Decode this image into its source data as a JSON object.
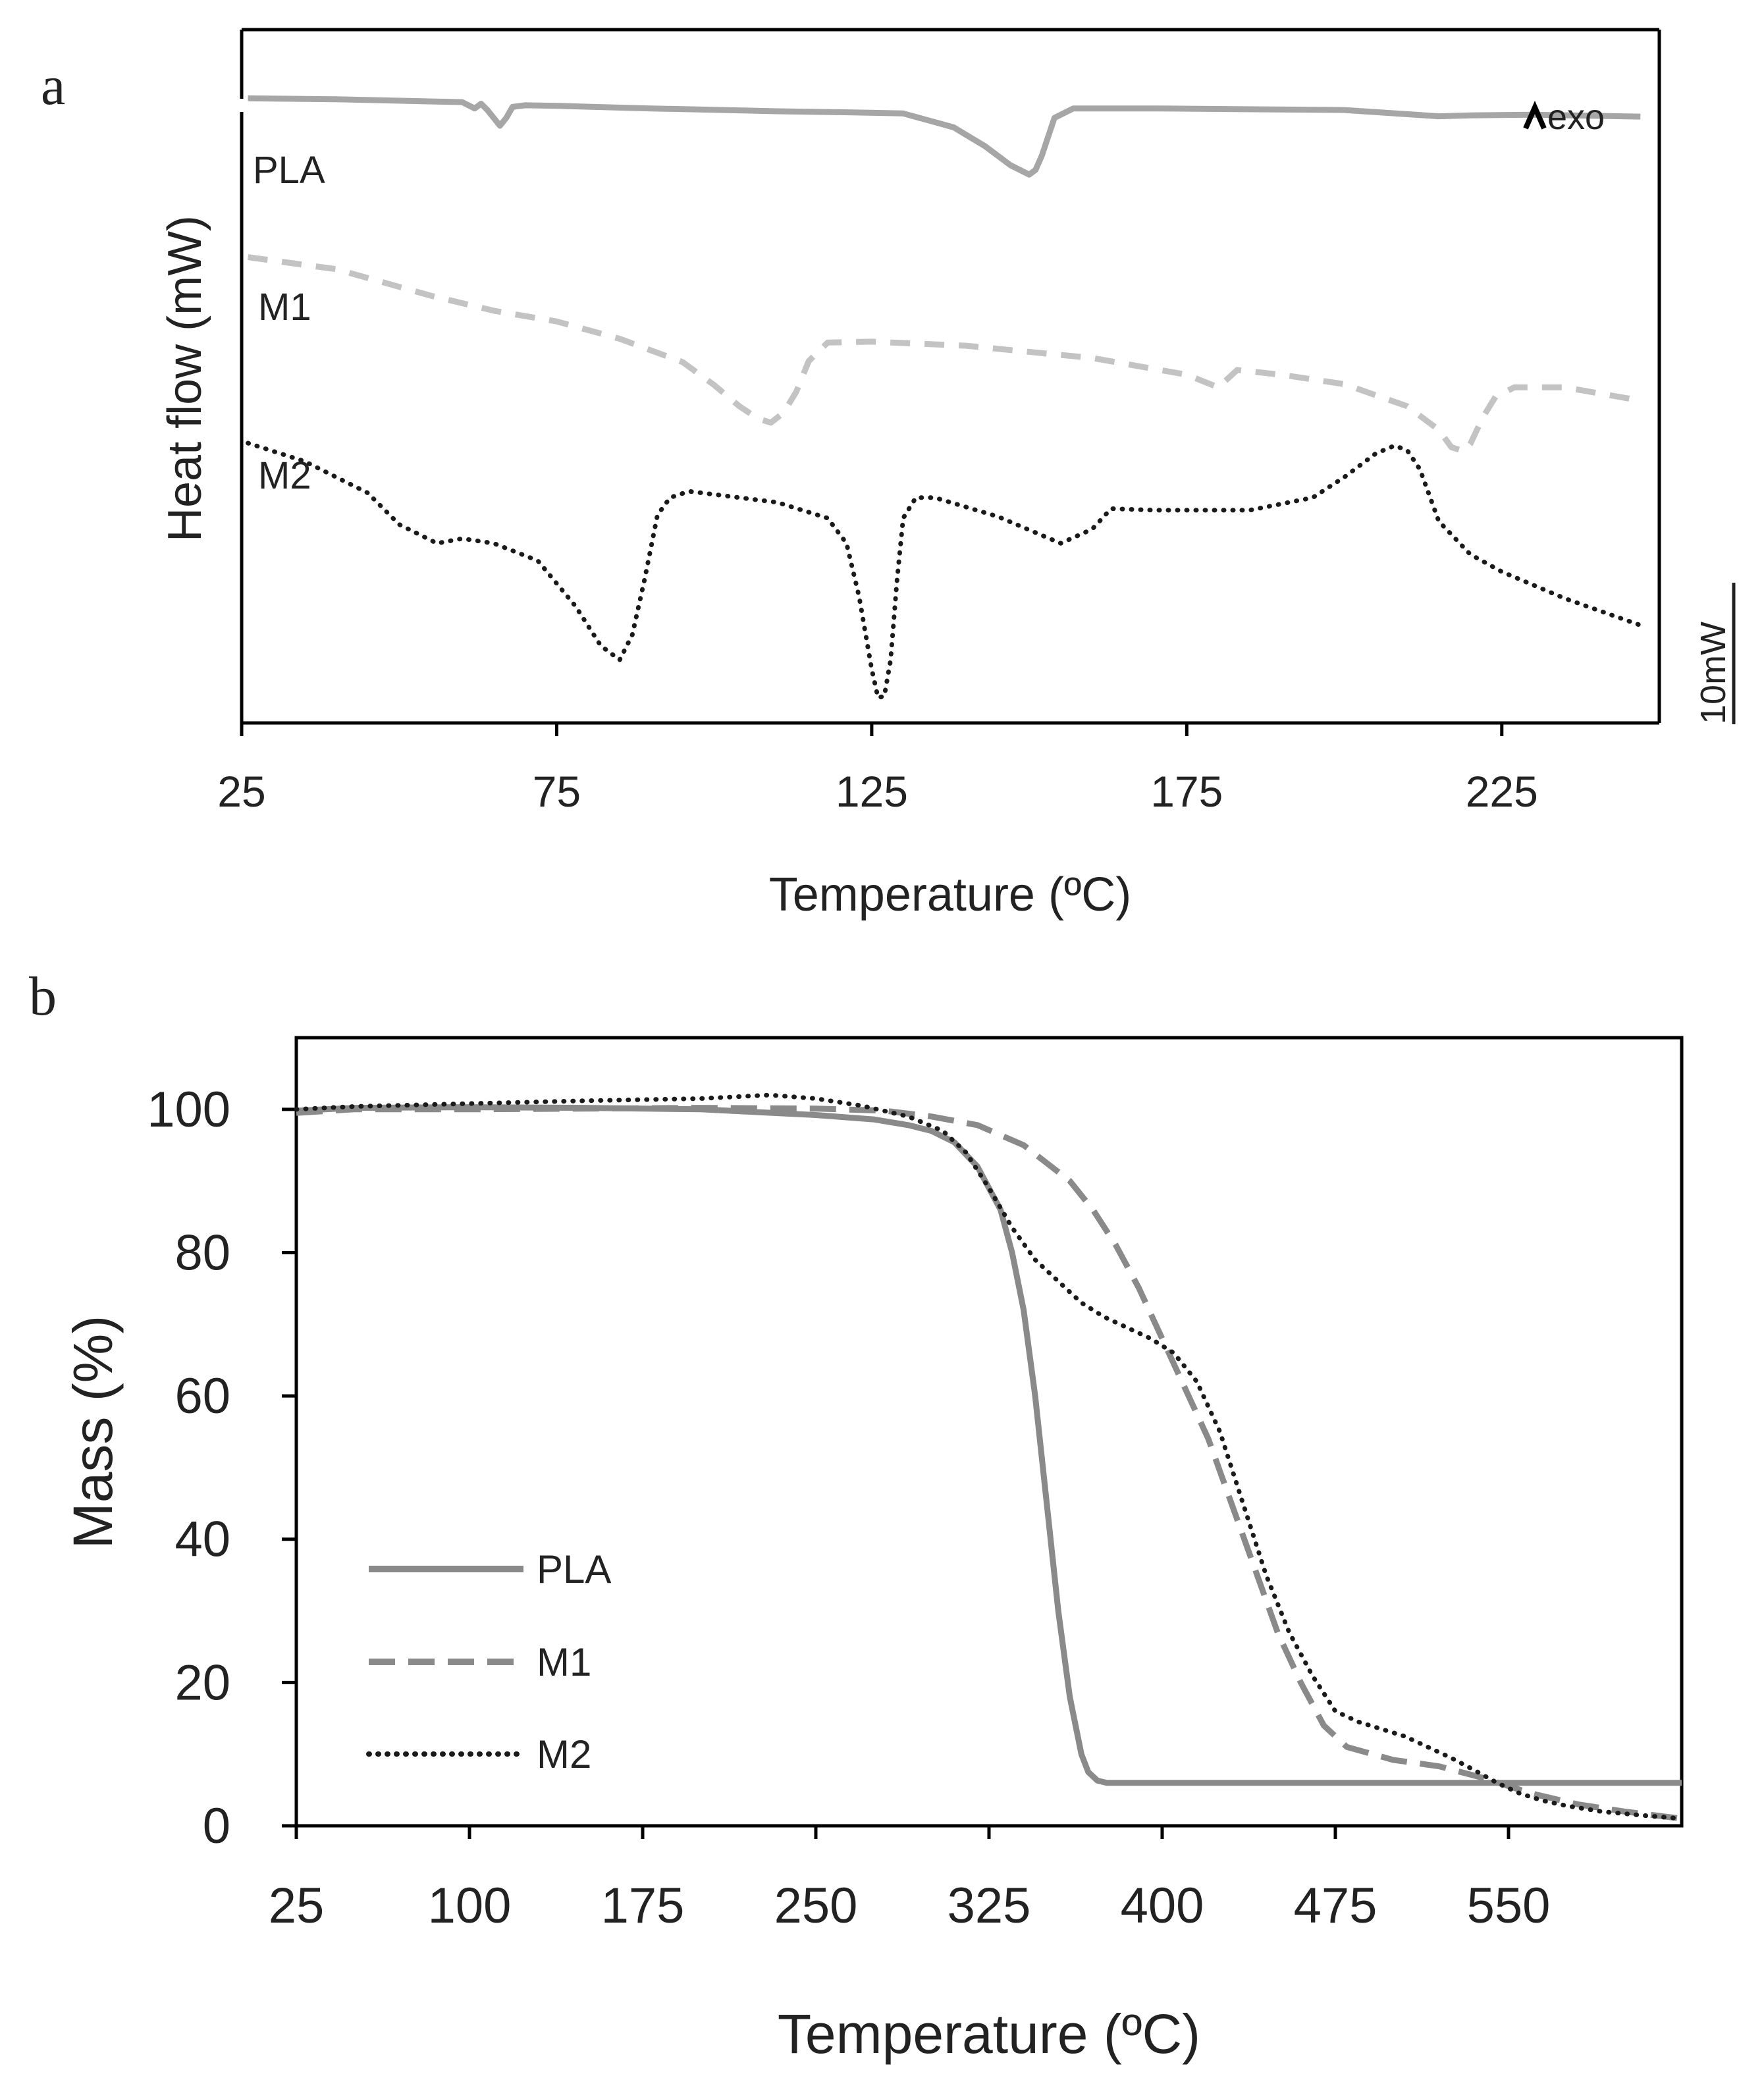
{
  "chart_data": [
    {
      "panel": "a",
      "type": "line",
      "xlabel": "Temperature (ºC)",
      "ylabel": "Heat flow  (mW)",
      "xlim": [
        25,
        250
      ],
      "xticks": [
        "25",
        "75",
        "125",
        "175",
        "225"
      ],
      "annotations": {
        "exo": "exo",
        "scale_bar": "10mW"
      },
      "series": [
        {
          "name": "PLA",
          "style": "solid",
          "color": "#a6a6a6",
          "x": [
            26,
            40,
            60,
            62,
            63,
            64,
            66,
            67,
            68,
            70,
            75,
            90,
            110,
            120,
            130,
            138,
            143,
            147,
            150,
            151,
            152,
            154,
            157,
            170,
            200,
            215,
            220,
            230,
            247
          ],
          "y": [
            98.2,
            97.9,
            97.0,
            95.0,
            96.5,
            94.5,
            89.5,
            92.0,
            95.5,
            96.0,
            95.8,
            95.0,
            94.1,
            93.8,
            93.4,
            89.0,
            83.0,
            77.0,
            74.0,
            75.5,
            80.0,
            92.0,
            95.0,
            95.0,
            94.5,
            92.5,
            92.8,
            93.0,
            92.4
          ]
        },
        {
          "name": "M1",
          "style": "dashed",
          "color": "#c3c3c3",
          "x": [
            26,
            40,
            55,
            65,
            75,
            85,
            95,
            100,
            104,
            107,
            109,
            111,
            113,
            115,
            118,
            125,
            140,
            160,
            175,
            180,
            183,
            190,
            200,
            210,
            215,
            217,
            219,
            220,
            222,
            224,
            227,
            235,
            247
          ],
          "y": [
            47.8,
            44.0,
            35.6,
            30.8,
            27.4,
            21.9,
            14.5,
            7.2,
            0.5,
            -3.5,
            -4.7,
            -1.6,
            5.0,
            14.8,
            20.7,
            21.0,
            19.7,
            15.8,
            10.5,
            6.5,
            12.0,
            10.5,
            7.5,
            0.5,
            -7.0,
            -12.5,
            -13.8,
            -11.5,
            -3.0,
            3.5,
            6.5,
            6.5,
            2.3
          ]
        },
        {
          "name": "M2",
          "style": "dotted",
          "color": "#1a1a1a",
          "x": [
            26,
            35,
            45,
            50,
            56,
            60,
            65,
            72,
            78,
            82,
            85,
            87,
            89,
            91,
            93,
            96,
            100,
            110,
            118,
            121,
            123,
            125,
            126,
            127,
            128,
            129,
            130,
            132,
            135,
            145,
            155,
            160,
            163,
            170,
            185,
            195,
            200,
            205,
            208,
            210,
            212,
            215,
            220,
            225,
            235,
            247
          ],
          "y": [
            -11.2,
            -17.0,
            -27.0,
            -37.0,
            -43.0,
            -41.5,
            -43.0,
            -48.5,
            -63.0,
            -75.5,
            -80.0,
            -72.0,
            -54.0,
            -34.0,
            -28.5,
            -26.5,
            -27.5,
            -30.0,
            -35.0,
            -43.0,
            -60.0,
            -83.0,
            -92.0,
            -91.5,
            -80.0,
            -55.0,
            -35.0,
            -28.5,
            -28.5,
            -34.5,
            -43.0,
            -38.5,
            -32.0,
            -32.5,
            -32.5,
            -28.5,
            -22.0,
            -14.5,
            -12.0,
            -13.5,
            -19.5,
            -36.0,
            -46.5,
            -52.0,
            -60.5,
            -69.0
          ]
        }
      ]
    },
    {
      "panel": "b",
      "type": "line",
      "xlabel": "Temperature (ºC)",
      "ylabel": "Mass (%)",
      "xlim": [
        25,
        625
      ],
      "ylim": [
        0,
        110
      ],
      "xticks": [
        25,
        100,
        175,
        250,
        325,
        400,
        475,
        550
      ],
      "yticks": [
        0,
        20,
        40,
        60,
        80,
        100
      ],
      "legend": "left-bottom",
      "series": [
        {
          "name": "PLA",
          "style": "solid",
          "color": "#8a8a8a",
          "x": [
            25,
            50,
            100,
            150,
            200,
            250,
            275,
            290,
            300,
            310,
            320,
            330,
            335,
            340,
            345,
            350,
            355,
            360,
            365,
            368,
            372,
            376,
            380,
            400,
            500,
            600,
            625
          ],
          "y": [
            99.8,
            100.2,
            100.3,
            100.2,
            100.0,
            99.2,
            98.6,
            97.8,
            97.0,
            95.4,
            92.0,
            86.0,
            80.0,
            72.0,
            60.0,
            45.0,
            30.0,
            18.0,
            10.0,
            7.5,
            6.3,
            6.0,
            6.0,
            6.0,
            6.0,
            6.0,
            6.0
          ]
        },
        {
          "name": "M1",
          "style": "dashed",
          "color": "#8a8a8a",
          "x": [
            25,
            50,
            100,
            150,
            200,
            250,
            280,
            300,
            320,
            340,
            360,
            370,
            380,
            390,
            400,
            410,
            420,
            430,
            440,
            450,
            460,
            470,
            480,
            500,
            520,
            540,
            560,
            580,
            600,
            625
          ],
          "y": [
            99.5,
            100.0,
            100.0,
            100.1,
            100.2,
            100.1,
            99.8,
            99.0,
            97.8,
            95.0,
            90.0,
            86.0,
            81.0,
            75.0,
            68.0,
            61.0,
            54.0,
            45.0,
            36.0,
            27.0,
            20.0,
            14.0,
            11.0,
            9.2,
            8.3,
            6.6,
            4.5,
            3.0,
            2.0,
            1.0
          ]
        },
        {
          "name": "M2",
          "style": "dotted",
          "color": "#1a1a1a",
          "x": [
            25,
            50,
            100,
            150,
            200,
            230,
            250,
            270,
            290,
            305,
            315,
            325,
            335,
            345,
            355,
            365,
            375,
            385,
            395,
            405,
            415,
            425,
            435,
            445,
            455,
            465,
            475,
            485,
            495,
            505,
            515,
            525,
            535,
            545,
            555,
            565,
            575,
            590,
            610,
            625
          ],
          "y": [
            100.0,
            100.4,
            100.8,
            101.2,
            101.5,
            102.0,
            101.5,
            100.5,
            99.0,
            97.0,
            94.0,
            89.0,
            83.5,
            79.0,
            76.0,
            73.0,
            71.0,
            69.5,
            68.0,
            66.0,
            62.0,
            55.0,
            45.0,
            35.0,
            27.0,
            21.0,
            16.0,
            14.5,
            13.5,
            12.5,
            11.0,
            9.5,
            7.8,
            6.0,
            4.5,
            3.5,
            2.8,
            2.0,
            1.4,
            1.0
          ]
        }
      ]
    }
  ]
}
